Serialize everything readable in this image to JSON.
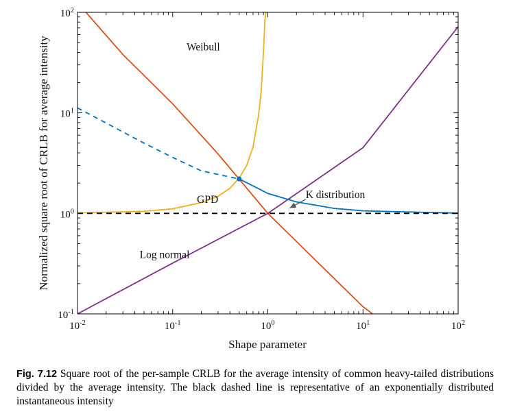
{
  "chart_data": {
    "type": "line",
    "xlabel": "Shape parameter",
    "ylabel": "Normalized square root of CRLB for average intensity",
    "x_scale": "log",
    "y_scale": "log",
    "xlim": [
      0.01,
      100
    ],
    "ylim": [
      0.1,
      100
    ],
    "x_ticks": [
      {
        "base": "10",
        "exp": "-2",
        "value": 0.01
      },
      {
        "base": "10",
        "exp": "-1",
        "value": 0.1
      },
      {
        "base": "10",
        "exp": "0",
        "value": 1
      },
      {
        "base": "10",
        "exp": "1",
        "value": 10
      },
      {
        "base": "10",
        "exp": "2",
        "value": 100
      }
    ],
    "y_ticks": [
      {
        "base": "10",
        "exp": "-1",
        "value": 0.1
      },
      {
        "base": "10",
        "exp": "0",
        "value": 1
      },
      {
        "base": "10",
        "exp": "1",
        "value": 10
      },
      {
        "base": "10",
        "exp": "2",
        "value": 100
      }
    ],
    "grid": false,
    "series": [
      {
        "name": "Weibull",
        "color": "#d95319",
        "x": [
          0.01,
          0.03,
          0.1,
          0.3,
          1,
          3,
          10,
          12.6
        ],
        "y": [
          125,
          38,
          12.3,
          3.9,
          1.0,
          0.36,
          0.118,
          0.1
        ]
      },
      {
        "name": "GPD",
        "color": "#edb120",
        "x": [
          0.01,
          0.05,
          0.1,
          0.2,
          0.3,
          0.4,
          0.5,
          0.6,
          0.7,
          0.8,
          0.85,
          0.9,
          0.93,
          0.95
        ],
        "y": [
          1.01,
          1.05,
          1.11,
          1.28,
          1.48,
          1.78,
          2.24,
          3.0,
          4.6,
          9.5,
          16,
          40,
          80,
          100
        ]
      },
      {
        "name": "Log normal",
        "color": "#7e2f8e",
        "x": [
          0.01,
          0.1,
          1,
          10,
          100
        ],
        "y": [
          0.1,
          0.32,
          1.0,
          4.5,
          72
        ]
      },
      {
        "name": "K distribution",
        "color": "#0072bd",
        "style": "dashed",
        "x": [
          0.01,
          0.05,
          0.1,
          0.2,
          0.5
        ],
        "y": [
          11.2,
          5.0,
          3.6,
          2.65,
          2.2
        ]
      },
      {
        "name": "K distribution",
        "color": "#0072bd",
        "style": "solid",
        "x": [
          0.5,
          1,
          2,
          5,
          10,
          100
        ],
        "y": [
          2.2,
          1.58,
          1.3,
          1.12,
          1.06,
          1.005
        ]
      },
      {
        "name": "",
        "color": "#000000",
        "style": "dashed",
        "x": [
          0.01,
          100
        ],
        "y": [
          1.0,
          1.0
        ]
      }
    ],
    "markers": [
      {
        "x": 0.5,
        "y": 2.2,
        "color": "#0072bd"
      }
    ],
    "annotations": [
      {
        "text": "Weibull",
        "x": 0.14,
        "y": 42
      },
      {
        "text": "GPD",
        "x": 0.18,
        "y": 1.27
      },
      {
        "text": "Log normal",
        "x": 0.045,
        "y": 0.36
      },
      {
        "text": "K distribution",
        "x": 2.5,
        "y": 1.42
      }
    ],
    "arrow": {
      "from": [
        2.5,
        1.38
      ],
      "to": [
        1.7,
        1.13
      ],
      "color": "#555555"
    }
  },
  "caption": {
    "label": "Fig. 7.12",
    "text": "Square root of the per-sample CRLB for the average intensity of common heavy-tailed distributions divided by the average intensity. The black dashed line is representative of an exponentially distributed instantaneous intensity"
  }
}
